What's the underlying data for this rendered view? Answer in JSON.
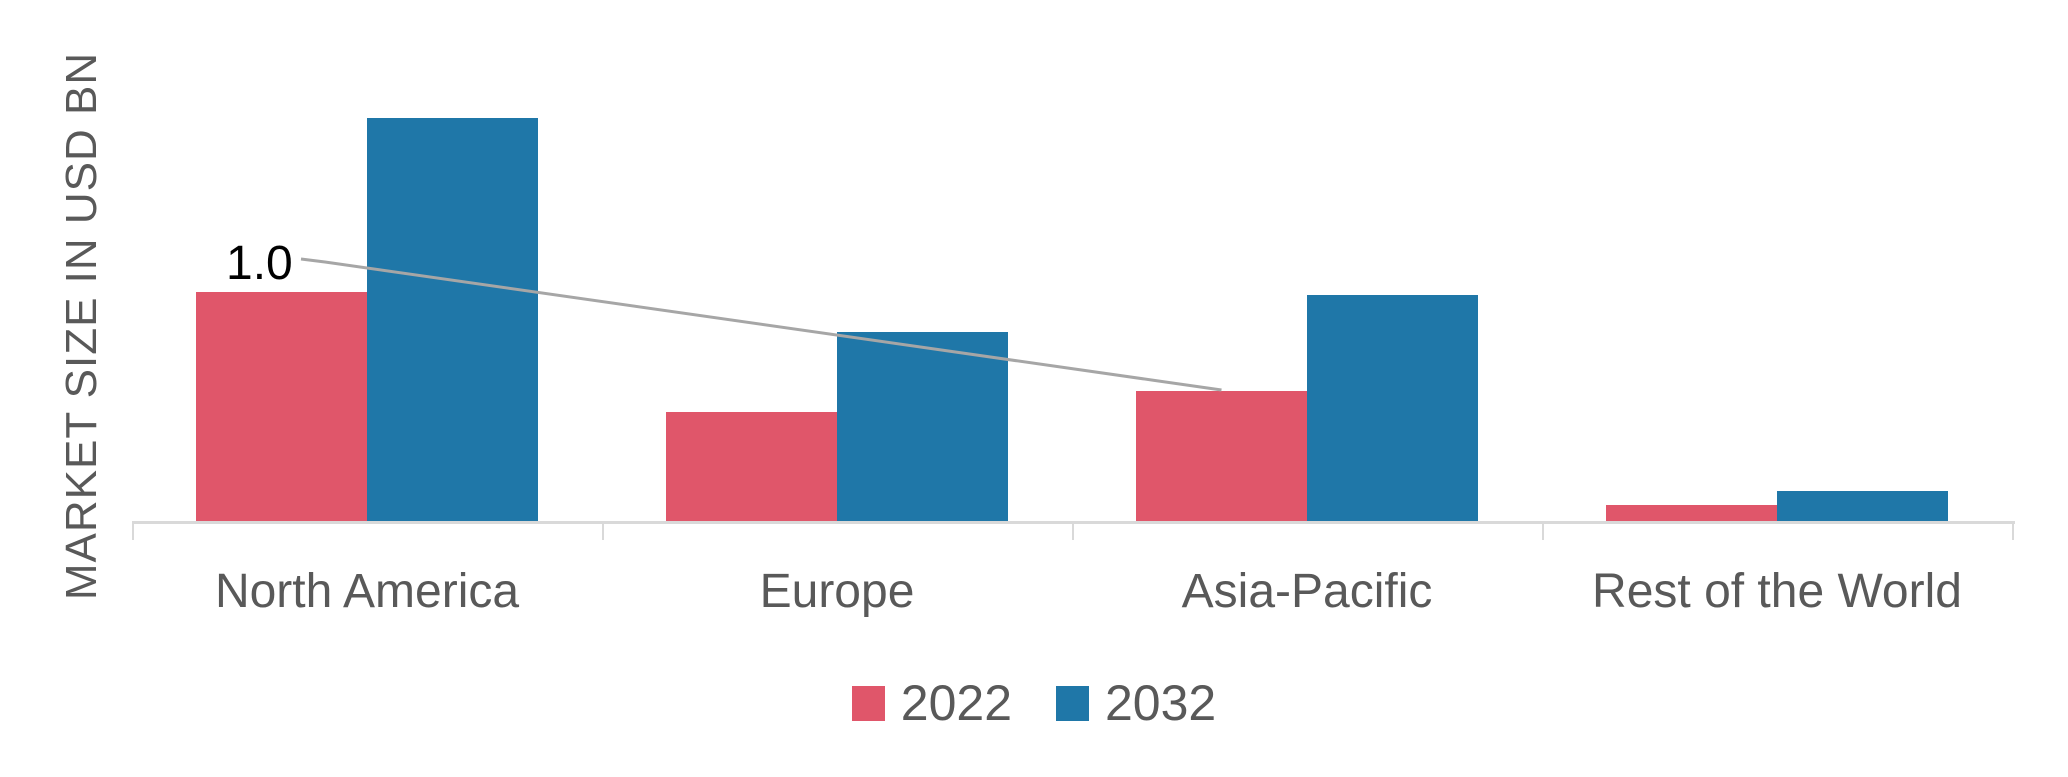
{
  "chart_data": {
    "type": "bar",
    "title": "",
    "ylabel": "MARKET SIZE IN USD BN",
    "xlabel": "",
    "categories": [
      "North America",
      "Europe",
      "Asia-Pacific",
      "Rest of the World"
    ],
    "series": [
      {
        "name": "2022",
        "color": "#e0566a",
        "values": [
          1.75,
          0.84,
          1.0,
          0.14
        ]
      },
      {
        "name": "2032",
        "color": "#1f77a8",
        "values": [
          3.07,
          1.45,
          1.73,
          0.24
        ]
      }
    ],
    "unit": "USD BN",
    "ylim": [
      0,
      3.4
    ],
    "grid": false,
    "legend_position": "bottom",
    "annotation": {
      "text": "1.0",
      "target_category": "Asia-Pacific",
      "target_series": "2022"
    }
  },
  "colors": {
    "axis": "#d9d9d9",
    "text": "#595959",
    "annotation_text": "#000000",
    "leader_line": "#a6a6a6",
    "background": "#ffffff"
  }
}
